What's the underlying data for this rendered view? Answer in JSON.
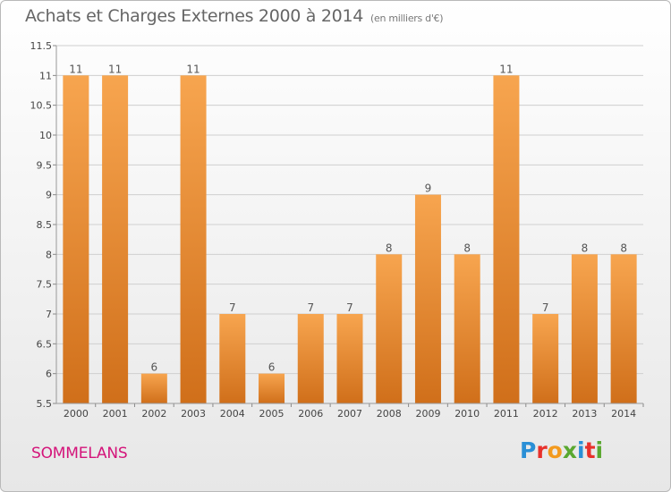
{
  "header": {
    "title": "Achats et Charges Externes 2000 à 2014",
    "unit": "(en milliers d'€)"
  },
  "footer": {
    "city": "SOMMELANS",
    "brand": "Proxiti",
    "brand_colors": [
      "#2a8fd6",
      "#e8312b",
      "#f39a1e",
      "#5aa830",
      "#2a8fd6",
      "#e8312b",
      "#5aa830"
    ]
  },
  "colors": {
    "bar_light": "#f7a54f",
    "bar_dark": "#d06f1a",
    "grid": "#cfcfcf",
    "axis_text": "#444444",
    "label_text": "#555555",
    "city": "#d4147a"
  },
  "chart_data": {
    "type": "bar",
    "title": "Achats et Charges Externes 2000 à 2014",
    "subtitle": "(en milliers d'€)",
    "categories": [
      "2000",
      "2001",
      "2002",
      "2003",
      "2004",
      "2005",
      "2006",
      "2007",
      "2008",
      "2009",
      "2010",
      "2011",
      "2012",
      "2013",
      "2014"
    ],
    "values": [
      11,
      11,
      6,
      11,
      7,
      6,
      7,
      7,
      8,
      9,
      8,
      11,
      7,
      8,
      8
    ],
    "data_labels": [
      "11",
      "11",
      "6",
      "11",
      "7",
      "6",
      "7",
      "7",
      "8",
      "9",
      "8",
      "11",
      "7",
      "8",
      "8"
    ],
    "ylim": [
      5.5,
      11.5
    ],
    "yticks": [
      "5.5",
      "6",
      "6.5",
      "7",
      "7.5",
      "8",
      "8.5",
      "9",
      "9.5",
      "10",
      "10.5",
      "11",
      "11.5"
    ],
    "grid": true,
    "xlabel": "",
    "ylabel": ""
  }
}
